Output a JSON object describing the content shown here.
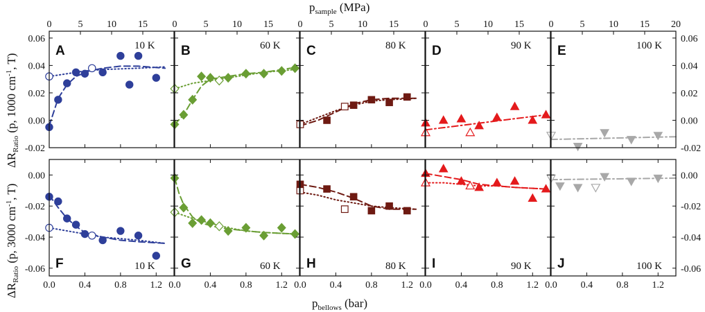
{
  "chart_data": {
    "type": "scatter",
    "top_axis_label": "p",
    "top_axis_label_sub": "sample",
    "top_axis_unit": " (MPa)",
    "top_ticks": [
      "0",
      "5",
      "10",
      "15",
      "20"
    ],
    "bottom_axis_label": "p",
    "bottom_axis_label_sub": "bellows",
    "bottom_axis_unit": " (bar)",
    "bottom_ticks": [
      "0.0",
      "0.4",
      "0.8",
      "1.2"
    ],
    "xlim": [
      0,
      1.4
    ],
    "top_row": {
      "ylabel": "ΔR",
      "ylabel_sub": "Ratio",
      "ylabel_rest": " (p, 1000 cm",
      "ylabel_sup": "-1",
      "ylabel_end": ", T)",
      "ylim": [
        -0.02,
        0.065
      ],
      "left_ticks": [
        "0.06",
        "0.04",
        "0.02",
        "0.00",
        "-0.02"
      ],
      "right_ticks": [
        "0.06",
        "0.04",
        "0.02",
        "0.00",
        "-0.02"
      ],
      "tick_values": [
        0.06,
        0.04,
        0.02,
        0.0,
        -0.02
      ]
    },
    "bottom_row": {
      "ylabel": "ΔR",
      "ylabel_sub": "Ratio",
      "ylabel_rest": " (p, 3000 cm",
      "ylabel_sup": "-1",
      "ylabel_end": ", T)",
      "ylim": [
        -0.065,
        0.01
      ],
      "left_ticks": [
        "0.00",
        "-0.02",
        "-0.04",
        "-0.06"
      ],
      "right_ticks": [
        "0.00",
        "-0.02",
        "-0.04",
        "-0.06"
      ],
      "tick_values": [
        0.0,
        -0.02,
        -0.04,
        -0.06
      ]
    },
    "panels": [
      {
        "letter": "A",
        "temp": "10 K",
        "row": 0,
        "col": 0,
        "color": "#2e3f9a",
        "marker": "circle",
        "letter_pos": "top",
        "filled": [
          [
            0,
            -0.005
          ],
          [
            0.1,
            0.015
          ],
          [
            0.2,
            0.027
          ],
          [
            0.3,
            0.035
          ],
          [
            0.4,
            0.034
          ],
          [
            0.6,
            0.035
          ],
          [
            0.8,
            0.047
          ],
          [
            0.9,
            0.026
          ],
          [
            1.0,
            0.047
          ],
          [
            1.2,
            0.031
          ]
        ],
        "open": [
          [
            0,
            0.032
          ],
          [
            0.48,
            0.038
          ]
        ],
        "dash": [
          [
            0,
            -0.004
          ],
          [
            0.1,
            0.016
          ],
          [
            0.2,
            0.026
          ],
          [
            0.3,
            0.032
          ],
          [
            0.45,
            0.036
          ],
          [
            0.6,
            0.038
          ],
          [
            0.8,
            0.0395
          ],
          [
            1.0,
            0.0395
          ],
          [
            1.3,
            0.038
          ]
        ],
        "dot": [
          [
            0,
            0.032
          ],
          [
            0.2,
            0.034
          ],
          [
            0.4,
            0.036
          ],
          [
            0.6,
            0.037
          ],
          [
            1.0,
            0.038
          ],
          [
            1.3,
            0.039
          ]
        ]
      },
      {
        "letter": "B",
        "temp": "60 K",
        "row": 0,
        "col": 1,
        "color": "#6a9e34",
        "marker": "diamond",
        "letter_pos": "top",
        "filled": [
          [
            0,
            -0.003
          ],
          [
            0.1,
            0.004
          ],
          [
            0.2,
            0.015
          ],
          [
            0.3,
            0.032
          ],
          [
            0.4,
            0.031
          ],
          [
            0.6,
            0.031
          ],
          [
            0.8,
            0.034
          ],
          [
            1.0,
            0.034
          ],
          [
            1.2,
            0.036
          ],
          [
            1.35,
            0.038
          ]
        ],
        "open": [
          [
            0,
            0.023
          ],
          [
            0.5,
            0.029
          ]
        ],
        "dash": [
          [
            0,
            -0.003
          ],
          [
            0.1,
            0.004
          ],
          [
            0.2,
            0.015
          ],
          [
            0.3,
            0.025
          ],
          [
            0.4,
            0.03
          ],
          [
            0.6,
            0.032
          ],
          [
            0.8,
            0.034
          ],
          [
            1.0,
            0.035
          ],
          [
            1.3,
            0.038
          ]
        ],
        "dot": [
          [
            0,
            0.023
          ],
          [
            0.2,
            0.027
          ],
          [
            0.4,
            0.029
          ],
          [
            0.6,
            0.031
          ],
          [
            0.8,
            0.033
          ],
          [
            1.0,
            0.035
          ],
          [
            1.35,
            0.037
          ]
        ]
      },
      {
        "letter": "C",
        "temp": "80 K",
        "row": 0,
        "col": 2,
        "color": "#6e1a12",
        "marker": "square",
        "letter_pos": "top",
        "filled": [
          [
            0.3,
            0.0
          ],
          [
            0.6,
            0.011
          ],
          [
            0.8,
            0.015
          ],
          [
            1.0,
            0.013
          ],
          [
            1.2,
            0.017
          ]
        ],
        "open": [
          [
            0,
            -0.003
          ],
          [
            0.5,
            0.01
          ]
        ],
        "dash": [
          [
            0,
            -0.004
          ],
          [
            0.2,
            0.0
          ],
          [
            0.4,
            0.006
          ],
          [
            0.6,
            0.012
          ],
          [
            0.8,
            0.015
          ],
          [
            1.0,
            0.016
          ],
          [
            1.3,
            0.016
          ]
        ],
        "dot": [
          [
            0,
            -0.003
          ],
          [
            0.2,
            0.002
          ],
          [
            0.4,
            0.007
          ],
          [
            0.6,
            0.011
          ],
          [
            0.8,
            0.014
          ],
          [
            1.0,
            0.015
          ],
          [
            1.3,
            0.016
          ]
        ]
      },
      {
        "letter": "D",
        "temp": "90 K",
        "row": 0,
        "col": 3,
        "color": "#e41a1c",
        "marker": "triangle",
        "letter_pos": "top",
        "filled": [
          [
            0,
            -0.002
          ],
          [
            0.2,
            0.0
          ],
          [
            0.4,
            0.001
          ],
          [
            0.6,
            -0.004
          ],
          [
            0.8,
            0.002
          ],
          [
            1.0,
            0.01
          ],
          [
            1.2,
            0.0
          ],
          [
            1.35,
            0.004
          ]
        ],
        "open": [
          [
            0,
            -0.009
          ],
          [
            0.5,
            -0.009
          ]
        ],
        "dashdot": [
          [
            0,
            -0.007
          ],
          [
            1.35,
            0.004
          ]
        ]
      },
      {
        "letter": "E",
        "temp": "100 K",
        "row": 0,
        "col": 4,
        "color": "#a8a8a8",
        "marker": "triangle-down",
        "letter_pos": "top",
        "filled": [
          [
            0.3,
            -0.019
          ],
          [
            0.6,
            -0.009
          ],
          [
            0.9,
            -0.014
          ],
          [
            1.2,
            -0.011
          ]
        ],
        "open": [
          [
            0,
            -0.011
          ]
        ],
        "dashdot": [
          [
            0,
            -0.014
          ],
          [
            1.4,
            -0.012
          ]
        ]
      },
      {
        "letter": "F",
        "temp": "10 K",
        "row": 1,
        "col": 0,
        "color": "#2e3f9a",
        "marker": "circle",
        "letter_pos": "bottom",
        "filled": [
          [
            0,
            -0.014
          ],
          [
            0.1,
            -0.017
          ],
          [
            0.2,
            -0.028
          ],
          [
            0.3,
            -0.032
          ],
          [
            0.4,
            -0.038
          ],
          [
            0.6,
            -0.042
          ],
          [
            0.8,
            -0.036
          ],
          [
            1.0,
            -0.039
          ],
          [
            1.2,
            -0.052
          ]
        ],
        "open": [
          [
            0,
            -0.034
          ],
          [
            0.48,
            -0.039
          ]
        ],
        "dash": [
          [
            0,
            -0.013
          ],
          [
            0.1,
            -0.021
          ],
          [
            0.2,
            -0.028
          ],
          [
            0.3,
            -0.033
          ],
          [
            0.4,
            -0.037
          ],
          [
            0.6,
            -0.04
          ],
          [
            0.8,
            -0.042
          ],
          [
            1.0,
            -0.043
          ],
          [
            1.3,
            -0.044
          ]
        ],
        "dot": [
          [
            0,
            -0.034
          ],
          [
            0.2,
            -0.036
          ],
          [
            0.4,
            -0.038
          ],
          [
            0.6,
            -0.04
          ],
          [
            0.8,
            -0.041
          ],
          [
            1.0,
            -0.042
          ],
          [
            1.3,
            -0.044
          ]
        ]
      },
      {
        "letter": "G",
        "temp": "60 K",
        "row": 1,
        "col": 1,
        "color": "#6a9e34",
        "marker": "diamond",
        "letter_pos": "bottom",
        "filled": [
          [
            0,
            -0.002
          ],
          [
            0.1,
            -0.021
          ],
          [
            0.2,
            -0.031
          ],
          [
            0.3,
            -0.029
          ],
          [
            0.4,
            -0.031
          ],
          [
            0.6,
            -0.036
          ],
          [
            0.8,
            -0.034
          ],
          [
            1.0,
            -0.039
          ],
          [
            1.2,
            -0.034
          ],
          [
            1.35,
            -0.038
          ]
        ],
        "open": [
          [
            0,
            -0.024
          ],
          [
            0.5,
            -0.033
          ]
        ],
        "dash": [
          [
            0,
            -0.002
          ],
          [
            0.05,
            -0.012
          ],
          [
            0.1,
            -0.019
          ],
          [
            0.2,
            -0.027
          ],
          [
            0.3,
            -0.031
          ],
          [
            0.5,
            -0.034
          ],
          [
            0.8,
            -0.036
          ],
          [
            1.0,
            -0.037
          ],
          [
            1.35,
            -0.038
          ]
        ],
        "dot": [
          [
            0,
            -0.024
          ],
          [
            0.2,
            -0.028
          ],
          [
            0.4,
            -0.031
          ],
          [
            0.6,
            -0.034
          ],
          [
            0.8,
            -0.036
          ],
          [
            1.0,
            -0.037
          ],
          [
            1.35,
            -0.038
          ]
        ]
      },
      {
        "letter": "H",
        "temp": "80 K",
        "row": 1,
        "col": 2,
        "color": "#6e1a12",
        "marker": "square",
        "letter_pos": "bottom",
        "filled": [
          [
            0,
            -0.006
          ],
          [
            0.3,
            -0.009
          ],
          [
            0.6,
            -0.014
          ],
          [
            0.8,
            -0.023
          ],
          [
            1.0,
            -0.02
          ],
          [
            1.2,
            -0.023
          ]
        ],
        "open": [
          [
            0,
            -0.01
          ],
          [
            0.5,
            -0.022
          ]
        ],
        "dash": [
          [
            0,
            -0.006
          ],
          [
            0.2,
            -0.008
          ],
          [
            0.4,
            -0.011
          ],
          [
            0.6,
            -0.015
          ],
          [
            0.8,
            -0.02
          ],
          [
            1.0,
            -0.022
          ],
          [
            1.3,
            -0.022
          ]
        ],
        "dot": [
          [
            0,
            -0.011
          ],
          [
            0.2,
            -0.013
          ],
          [
            0.4,
            -0.016
          ],
          [
            0.6,
            -0.018
          ],
          [
            0.8,
            -0.02
          ],
          [
            1.0,
            -0.021
          ],
          [
            1.3,
            -0.022
          ]
        ]
      },
      {
        "letter": "I",
        "temp": "90 K",
        "row": 1,
        "col": 3,
        "color": "#e41a1c",
        "marker": "triangle",
        "letter_pos": "bottom",
        "filled": [
          [
            0,
            0.001
          ],
          [
            0.2,
            0.004
          ],
          [
            0.4,
            -0.004
          ],
          [
            0.6,
            -0.008
          ],
          [
            0.8,
            -0.005
          ],
          [
            1.0,
            -0.004
          ],
          [
            1.2,
            -0.015
          ],
          [
            1.35,
            -0.009
          ]
        ],
        "open": [
          [
            0,
            -0.005
          ],
          [
            0.5,
            -0.007
          ]
        ],
        "dash": [
          [
            0,
            0.001
          ],
          [
            0.2,
            -0.001
          ],
          [
            0.4,
            -0.003
          ],
          [
            0.6,
            -0.006
          ],
          [
            0.8,
            -0.007
          ],
          [
            1.0,
            -0.008
          ],
          [
            1.35,
            -0.009
          ]
        ],
        "dot": [
          [
            0,
            -0.005
          ],
          [
            0.2,
            -0.005
          ],
          [
            0.4,
            -0.006
          ],
          [
            0.6,
            -0.007
          ],
          [
            0.8,
            -0.007
          ],
          [
            1.0,
            -0.008
          ],
          [
            1.35,
            -0.009
          ]
        ]
      },
      {
        "letter": "J",
        "temp": "100 K",
        "row": 1,
        "col": 4,
        "color": "#a8a8a8",
        "marker": "triangle-down",
        "letter_pos": "bottom",
        "filled": [
          [
            0.1,
            -0.007
          ],
          [
            0.3,
            -0.008
          ],
          [
            0.6,
            -0.001
          ],
          [
            0.9,
            -0.004
          ],
          [
            1.2,
            -0.002
          ]
        ],
        "open": [
          [
            0,
            -0.002
          ],
          [
            0.5,
            -0.008
          ]
        ],
        "dashdot": [
          [
            0,
            -0.003
          ],
          [
            1.4,
            -0.002
          ]
        ]
      }
    ]
  }
}
